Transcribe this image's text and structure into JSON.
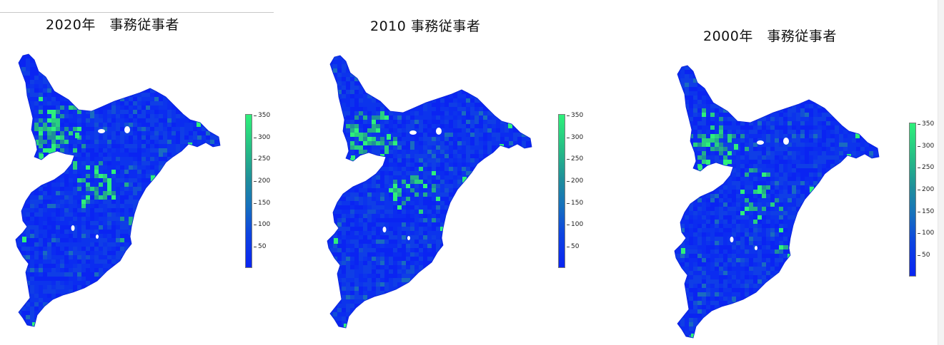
{
  "maps": [
    {
      "title": "2020年　事務従事者",
      "colorbar_ticks": [
        "350",
        "300",
        "250",
        "200",
        "150",
        "100",
        "50"
      ],
      "highlight_intensity": 1.0
    },
    {
      "title": "2010 事務従事者",
      "colorbar_ticks": [
        "350",
        "300",
        "250",
        "200",
        "150",
        "100",
        "50"
      ],
      "highlight_intensity": 0.8
    },
    {
      "title": "2000年　事務従事者",
      "colorbar_ticks": [
        "350",
        "300",
        "250",
        "200",
        "150",
        "100",
        "50"
      ],
      "highlight_intensity": 0.65
    }
  ],
  "legend": {
    "min": 0,
    "max": 350,
    "colors": {
      "low": "#0a24f2",
      "mid": "#1f8f9a",
      "high": "#2ef07a"
    }
  }
}
